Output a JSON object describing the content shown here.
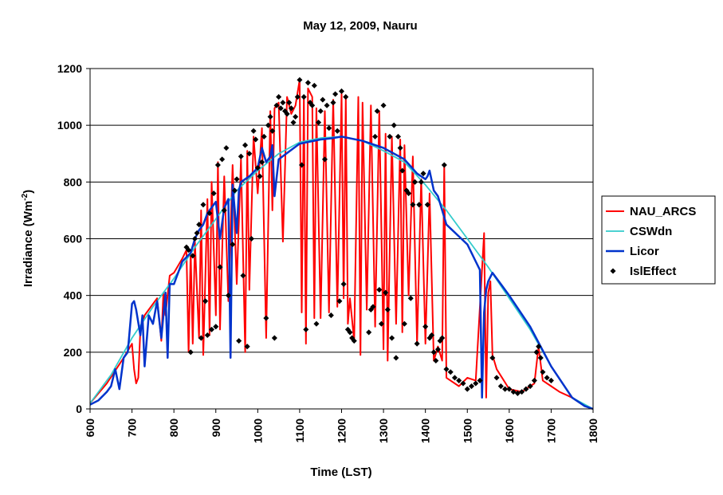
{
  "chart_data": {
    "type": "line",
    "title": "May 12, 2009, Nauru",
    "xlabel": "Time (LST)",
    "ylabel_main": "Irradiance (Wm",
    "ylabel_sup": "-2",
    "ylabel_close": ")",
    "xlim": [
      600,
      1800
    ],
    "ylim": [
      0,
      1200
    ],
    "xticks": [
      600,
      700,
      800,
      900,
      1000,
      1100,
      1200,
      1300,
      1400,
      1500,
      1600,
      1700,
      1800
    ],
    "yticks": [
      0,
      200,
      400,
      600,
      800,
      1000,
      1200
    ],
    "grid": "horizontal",
    "legend_position": "right",
    "series": [
      {
        "name": "NAU_ARCS",
        "color": "#ff0000",
        "style": "line",
        "x": [
          600,
          640,
          680,
          700,
          705,
          710,
          715,
          720,
          730,
          740,
          760,
          770,
          775,
          780,
          790,
          800,
          820,
          830,
          835,
          840,
          845,
          850,
          860,
          865,
          870,
          880,
          885,
          890,
          900,
          905,
          910,
          920,
          930,
          940,
          950,
          960,
          970,
          975,
          980,
          990,
          1000,
          1010,
          1020,
          1030,
          1035,
          1040,
          1050,
          1060,
          1070,
          1080,
          1090,
          1100,
          1105,
          1110,
          1115,
          1120,
          1130,
          1135,
          1140,
          1150,
          1160,
          1170,
          1180,
          1190,
          1200,
          1205,
          1210,
          1215,
          1220,
          1230,
          1240,
          1245,
          1250,
          1260,
          1270,
          1280,
          1290,
          1300,
          1305,
          1310,
          1320,
          1330,
          1340,
          1345,
          1350,
          1360,
          1370,
          1380,
          1390,
          1400,
          1410,
          1420,
          1430,
          1440,
          1445,
          1450,
          1460,
          1480,
          1500,
          1520,
          1540,
          1545,
          1550,
          1555,
          1560,
          1570,
          1600,
          1630,
          1660,
          1670,
          1680,
          1700,
          1720,
          1750,
          1780,
          1800
        ],
        "y": [
          20,
          90,
          180,
          230,
          140,
          90,
          110,
          280,
          330,
          350,
          390,
          240,
          410,
          330,
          470,
          480,
          530,
          560,
          200,
          560,
          230,
          590,
          250,
          700,
          190,
          740,
          260,
          800,
          330,
          870,
          280,
          820,
          380,
          860,
          440,
          880,
          200,
          910,
          420,
          960,
          760,
          990,
          250,
          1050,
          700,
          1060,
          1080,
          590,
          1100,
          1040,
          1070,
          1160,
          340,
          1100,
          230,
          1130,
          1100,
          320,
          1060,
          320,
          1050,
          340,
          1090,
          360,
          1110,
          390,
          1100,
          300,
          390,
          240,
          1100,
          190,
          1080,
          350,
          1070,
          290,
          1050,
          210,
          970,
          170,
          960,
          300,
          950,
          270,
          930,
          400,
          890,
          230,
          810,
          230,
          760,
          170,
          220,
          170,
          860,
          110,
          100,
          80,
          110,
          100,
          620,
          40,
          410,
          450,
          190,
          140,
          70,
          60,
          90,
          220,
          100,
          80,
          60,
          40,
          10,
          0
        ]
      },
      {
        "name": "CSWdn",
        "color": "#33cccc",
        "style": "line",
        "x": [
          600,
          650,
          700,
          750,
          800,
          850,
          900,
          950,
          1000,
          1050,
          1100,
          1150,
          1200,
          1250,
          1300,
          1350,
          1400,
          1450,
          1500,
          1550,
          1600,
          1650,
          1700,
          1750,
          1800
        ],
        "y": [
          20,
          120,
          250,
          360,
          460,
          570,
          670,
          770,
          840,
          900,
          940,
          955,
          960,
          945,
          910,
          870,
          790,
          700,
          600,
          500,
          390,
          280,
          150,
          40,
          0
        ]
      },
      {
        "name": "Licor",
        "color": "#0033cc",
        "style": "line",
        "x": [
          600,
          620,
          640,
          650,
          660,
          670,
          680,
          690,
          700,
          705,
          710,
          720,
          725,
          730,
          740,
          750,
          760,
          770,
          780,
          785,
          790,
          800,
          820,
          840,
          850,
          860,
          870,
          880,
          890,
          900,
          910,
          920,
          930,
          935,
          940,
          950,
          955,
          960,
          980,
          1000,
          1010,
          1020,
          1030,
          1035,
          1040,
          1050,
          1100,
          1150,
          1180,
          1200,
          1250,
          1300,
          1350,
          1380,
          1400,
          1405,
          1410,
          1420,
          1430,
          1450,
          1500,
          1520,
          1530,
          1535,
          1540,
          1545,
          1550,
          1560,
          1580,
          1600,
          1650,
          1700,
          1750,
          1780,
          1800
        ],
        "y": [
          15,
          30,
          60,
          80,
          140,
          70,
          180,
          200,
          370,
          380,
          350,
          260,
          330,
          150,
          330,
          300,
          380,
          250,
          410,
          180,
          440,
          440,
          520,
          550,
          600,
          630,
          650,
          690,
          710,
          730,
          600,
          710,
          740,
          180,
          790,
          620,
          770,
          800,
          820,
          850,
          920,
          870,
          890,
          930,
          750,
          880,
          935,
          950,
          955,
          960,
          945,
          920,
          880,
          830,
          810,
          820,
          840,
          770,
          750,
          650,
          580,
          520,
          490,
          40,
          340,
          420,
          450,
          480,
          440,
          400,
          290,
          150,
          40,
          10,
          0
        ]
      },
      {
        "name": "IslEffect",
        "color": "#000000",
        "style": "scatter",
        "x": [
          830,
          835,
          840,
          845,
          850,
          855,
          860,
          865,
          870,
          875,
          880,
          885,
          890,
          895,
          900,
          905,
          910,
          915,
          920,
          925,
          930,
          940,
          945,
          950,
          955,
          960,
          965,
          970,
          975,
          980,
          985,
          990,
          995,
          1000,
          1005,
          1010,
          1015,
          1020,
          1025,
          1030,
          1035,
          1040,
          1045,
          1050,
          1055,
          1060,
          1065,
          1070,
          1075,
          1080,
          1085,
          1090,
          1095,
          1100,
          1105,
          1110,
          1115,
          1120,
          1125,
          1130,
          1135,
          1140,
          1145,
          1150,
          1155,
          1160,
          1165,
          1170,
          1175,
          1180,
          1185,
          1190,
          1195,
          1200,
          1205,
          1210,
          1215,
          1220,
          1225,
          1230,
          1265,
          1270,
          1275,
          1280,
          1285,
          1290,
          1295,
          1300,
          1305,
          1310,
          1315,
          1320,
          1325,
          1330,
          1335,
          1340,
          1345,
          1350,
          1355,
          1360,
          1365,
          1370,
          1375,
          1380,
          1385,
          1390,
          1395,
          1400,
          1405,
          1410,
          1415,
          1420,
          1425,
          1430,
          1435,
          1440,
          1445,
          1450,
          1460,
          1470,
          1480,
          1490,
          1500,
          1510,
          1520,
          1530,
          1560,
          1570,
          1580,
          1590,
          1600,
          1610,
          1620,
          1630,
          1640,
          1650,
          1660,
          1665,
          1670,
          1675,
          1680,
          1690,
          1700
        ],
        "y": [
          570,
          560,
          200,
          540,
          600,
          620,
          650,
          250,
          720,
          380,
          260,
          690,
          280,
          760,
          290,
          860,
          500,
          880,
          700,
          920,
          400,
          580,
          770,
          810,
          240,
          890,
          470,
          930,
          220,
          900,
          600,
          980,
          950,
          850,
          820,
          870,
          960,
          320,
          1000,
          1030,
          980,
          250,
          1070,
          1100,
          1060,
          1080,
          1050,
          1040,
          1080,
          1060,
          1010,
          1030,
          1100,
          1160,
          860,
          1100,
          280,
          1150,
          1080,
          1070,
          1140,
          300,
          1010,
          1050,
          1090,
          880,
          1070,
          990,
          330,
          1080,
          1110,
          980,
          380,
          1120,
          440,
          1100,
          280,
          270,
          250,
          240,
          270,
          350,
          360,
          960,
          1050,
          420,
          300,
          1070,
          410,
          350,
          960,
          250,
          1000,
          180,
          960,
          920,
          840,
          300,
          770,
          760,
          390,
          720,
          800,
          230,
          720,
          800,
          830,
          290,
          720,
          250,
          260,
          200,
          170,
          210,
          240,
          250,
          860,
          140,
          130,
          110,
          100,
          90,
          70,
          80,
          90,
          100,
          180,
          110,
          80,
          70,
          70,
          60,
          55,
          60,
          70,
          80,
          100,
          200,
          220,
          180,
          130,
          110,
          100
        ]
      }
    ]
  }
}
